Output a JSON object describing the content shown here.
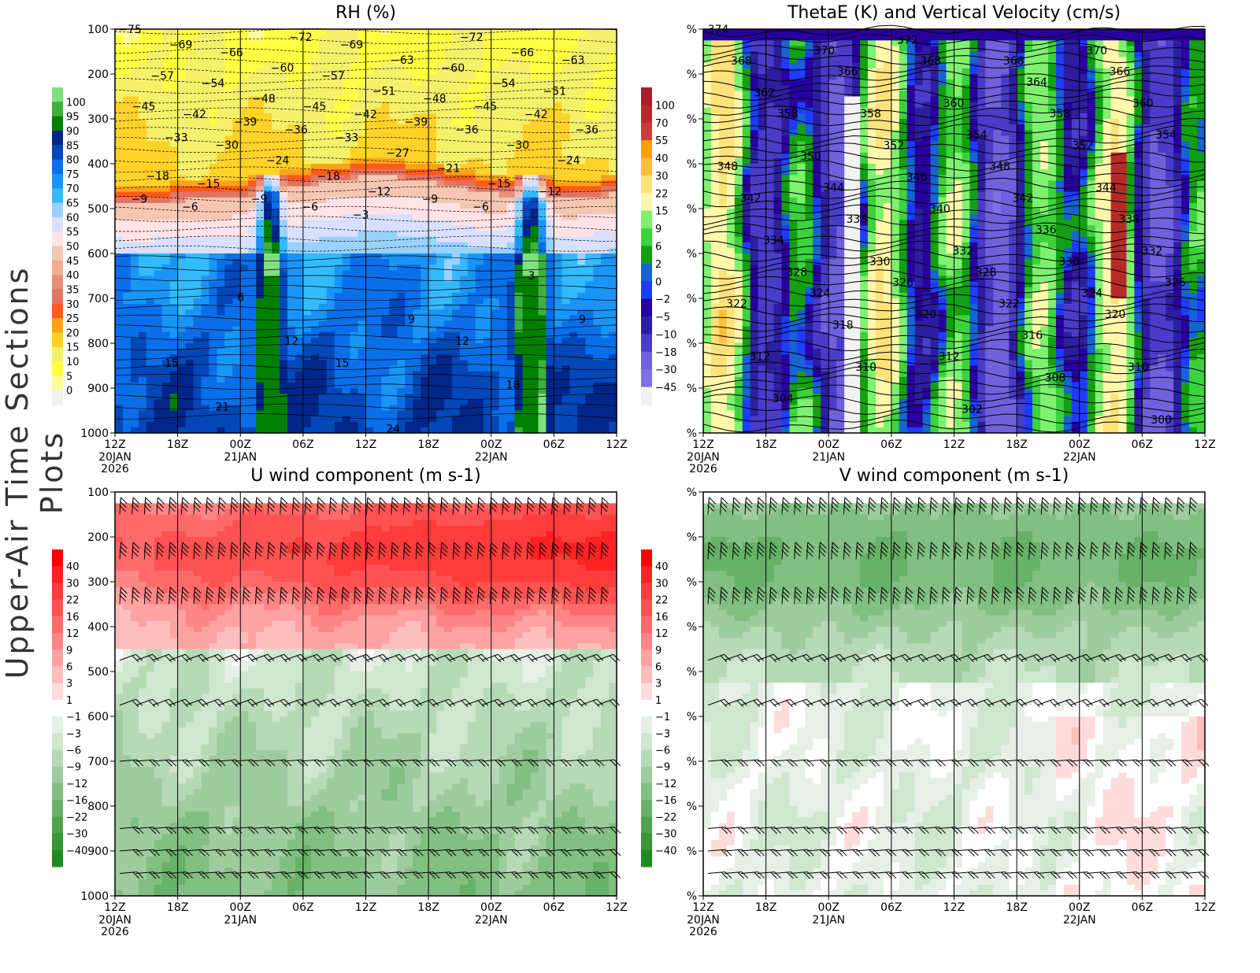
{
  "side_title": "Upper-Air Time Sections Plots",
  "x_ticks": [
    "12Z",
    "18Z",
    "00Z",
    "06Z",
    "12Z",
    "18Z",
    "00Z",
    "06Z",
    "12Z"
  ],
  "x_date_labels": [
    {
      "tick": 0,
      "lines": [
        "20JAN",
        "2026"
      ]
    },
    {
      "tick": 2,
      "lines": [
        "21JAN"
      ]
    },
    {
      "tick": 6,
      "lines": [
        "22JAN"
      ]
    }
  ],
  "chart_data": [
    {
      "type": "heatmap",
      "title": "RH (%)",
      "y_ticks": [
        "100",
        "200",
        "300",
        "400",
        "500",
        "600",
        "700",
        "800",
        "900",
        "1000"
      ],
      "ylim": [
        1000,
        100
      ],
      "y_scale": "pressure (inverted)",
      "colorbar": {
        "levels": [
          "100",
          "95",
          "90",
          "85",
          "80",
          "75",
          "70",
          "65",
          "60",
          "55",
          "50",
          "45",
          "40",
          "35",
          "30",
          "25",
          "20",
          "15",
          "10",
          "5",
          "0"
        ],
        "colors": [
          "#7ee07e",
          "#3db13d",
          "#008000",
          "#00268a",
          "#0447b8",
          "#0a6fe8",
          "#1a95f5",
          "#33bbff",
          "#99d1ff",
          "#d9e0ff",
          "#ffe3e6",
          "#f5c6b2",
          "#efaf94",
          "#e88e7c",
          "#e07563",
          "#ff5a1a",
          "#ffa21a",
          "#ffd22a",
          "#f5f06a",
          "#ffff44",
          "#ffff99",
          "#f2f2f2"
        ]
      },
      "contour_labels": [
        "-75",
        "-72",
        "-72",
        "-69",
        "-69",
        "-66",
        "-66",
        "-63",
        "-63",
        "-60",
        "-60",
        "-57",
        "-57",
        "-54",
        "-54",
        "-51",
        "-51",
        "-48",
        "-48",
        "-45",
        "-45",
        "-45",
        "-42",
        "-42",
        "-42",
        "-39",
        "-39",
        "-36",
        "-36",
        "-36",
        "-33",
        "-33",
        "-30",
        "-30",
        "-27",
        "-24",
        "-24",
        "-21",
        "-18",
        "-18",
        "-15",
        "-15",
        "-12",
        "-12",
        "-9",
        "-9",
        "-9",
        "-6",
        "-6",
        "-6",
        "-3",
        "3",
        "6",
        "9",
        "9",
        "12",
        "12",
        "15",
        "15",
        "18",
        "21",
        "24"
      ]
    },
    {
      "type": "heatmap",
      "title": "ThetaE (K) and Vertical Velocity (cm/s)",
      "y_tick_label": "%",
      "colorbar": {
        "levels": [
          "100",
          "70",
          "55",
          "40",
          "30",
          "22",
          "15",
          "9",
          "6",
          "2",
          "0",
          "-2",
          "-5",
          "-10",
          "-18",
          "-30",
          "-45"
        ],
        "colors": [
          "#a52024",
          "#b82a2a",
          "#c83d3d",
          "#ffa000",
          "#ffbe3c",
          "#ffe27a",
          "#fff7aa",
          "#80f070",
          "#3cd23c",
          "#12a012",
          "#1464d2",
          "#1e3cff",
          "#2800a0",
          "#2d1ea0",
          "#4a3cc8",
          "#7060dc",
          "#8070e6",
          "#f2f2f2"
        ]
      },
      "contour_labels": [
        "374",
        "372",
        "370",
        "370",
        "368",
        "368",
        "368",
        "366",
        "366",
        "364",
        "362",
        "360",
        "360",
        "358",
        "358",
        "358",
        "354",
        "354",
        "352",
        "352",
        "350",
        "348",
        "348",
        "346",
        "344",
        "344",
        "342",
        "342",
        "340",
        "338",
        "338",
        "336",
        "334",
        "332",
        "332",
        "330",
        "330",
        "328",
        "328",
        "326",
        "326",
        "324",
        "324",
        "322",
        "322",
        "320",
        "320",
        "318",
        "316",
        "312",
        "312",
        "310",
        "310",
        "308",
        "304",
        "302",
        "300"
      ]
    },
    {
      "type": "heatmap",
      "title": "U wind component (m s-1)",
      "y_ticks": [
        "100",
        "200",
        "300",
        "400",
        "500",
        "600",
        "700",
        "800",
        "900",
        "1000"
      ],
      "colorbar": {
        "levels": [
          "40",
          "30",
          "22",
          "16",
          "12",
          "9",
          "6",
          "3",
          "1",
          "-1",
          "-3",
          "-6",
          "-9",
          "-12",
          "-16",
          "-22",
          "-30",
          "-40"
        ],
        "colors": [
          "#ff0000",
          "#ff2222",
          "#ff3c3c",
          "#ff5252",
          "#ff6b6b",
          "#ff8686",
          "#ffa2a2",
          "#ffbebe",
          "#ffdcdc",
          "#ffffff",
          "#e6f0e6",
          "#cfe6cf",
          "#b6d9b6",
          "#9ecc9e",
          "#82bf82",
          "#68b168",
          "#4fa34f",
          "#379637",
          "#1f8a1f"
        ]
      },
      "wind_barb_levels": [
        "150",
        "250",
        "350",
        "475",
        "575",
        "700",
        "850",
        "900",
        "950"
      ]
    },
    {
      "type": "heatmap",
      "title": "V wind component (m s-1)",
      "y_tick_label": "%",
      "colorbar": {
        "levels": [
          "40",
          "30",
          "22",
          "16",
          "12",
          "9",
          "6",
          "3",
          "1",
          "-1",
          "-3",
          "-6",
          "-9",
          "-12",
          "-16",
          "-22",
          "-30",
          "-40"
        ],
        "colors": [
          "#ff0000",
          "#ff2222",
          "#ff3c3c",
          "#ff5252",
          "#ff6b6b",
          "#ff8686",
          "#ffa2a2",
          "#ffbebe",
          "#ffdcdc",
          "#ffffff",
          "#e6f0e6",
          "#cfe6cf",
          "#b6d9b6",
          "#9ecc9e",
          "#82bf82",
          "#68b168",
          "#4fa34f",
          "#379637",
          "#1f8a1f"
        ]
      },
      "wind_barb_levels": [
        "150",
        "250",
        "350",
        "475",
        "575",
        "700",
        "850",
        "900",
        "950"
      ]
    }
  ]
}
